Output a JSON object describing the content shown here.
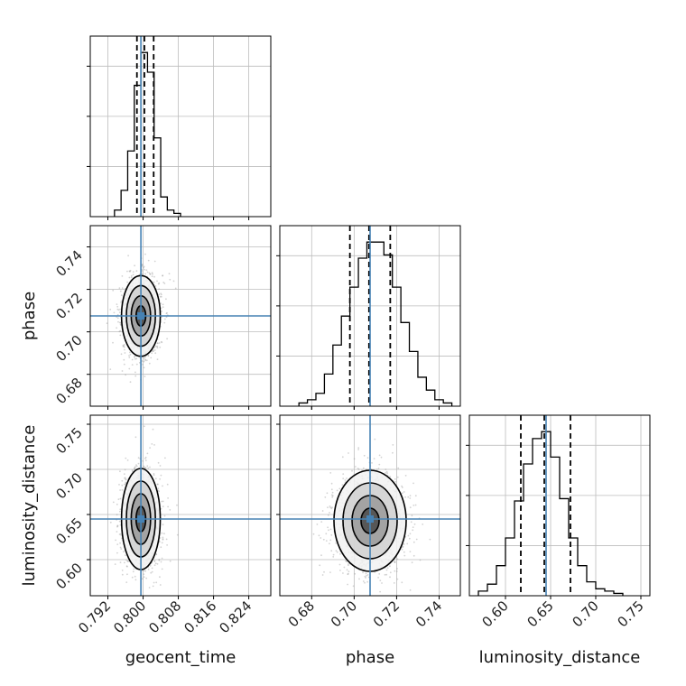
{
  "chart_data": {
    "type": "corner",
    "parameters": [
      "geocent_time",
      "phase",
      "luminosity_distance"
    ],
    "truths": {
      "geocent_time": 0.7995,
      "phase": 0.7075,
      "luminosity_distance": 0.645
    },
    "colors": {
      "truth": "#4682b4",
      "hist": "#000000",
      "grid": "#bdbdbd",
      "scatter": "#9e9e9e"
    },
    "axes": {
      "geocent_time": {
        "range": [
          0.788,
          0.829
        ],
        "ticks": [
          0.792,
          0.8,
          0.808,
          0.816,
          0.824
        ],
        "tick_labels": [
          "0.792",
          "0.800",
          "0.808",
          "0.816",
          "0.824"
        ]
      },
      "phase": {
        "range": [
          0.665,
          0.75
        ],
        "ticks": [
          0.68,
          0.7,
          0.72,
          0.74
        ],
        "tick_labels": [
          "0.68",
          "0.70",
          "0.72",
          "0.74"
        ]
      },
      "luminosity_distance": {
        "range": [
          0.56,
          0.76
        ],
        "ticks": [
          0.6,
          0.65,
          0.7,
          0.75
        ],
        "tick_labels": [
          "0.60",
          "0.65",
          "0.70",
          "0.75"
        ]
      }
    },
    "histograms": [
      {
        "parameter": "geocent_time",
        "bin_edges": [
          0.7935,
          0.795,
          0.7965,
          0.798,
          0.7995,
          0.801,
          0.8025,
          0.804,
          0.8055,
          0.807,
          0.8085
        ],
        "counts": [
          1,
          4,
          10,
          20,
          25,
          22,
          12,
          3,
          1,
          0.5
        ],
        "quantiles": [
          0.7986,
          0.8003,
          0.8024
        ]
      },
      {
        "parameter": "phase",
        "bin_edges": [
          0.674,
          0.678,
          0.682,
          0.686,
          0.69,
          0.694,
          0.698,
          0.702,
          0.706,
          0.71,
          0.714,
          0.718,
          0.722,
          0.726,
          0.73,
          0.734,
          0.738,
          0.742,
          0.746
        ],
        "counts": [
          1,
          2,
          4,
          10,
          19,
          28,
          37,
          46,
          51,
          51,
          47,
          37,
          26,
          17,
          9,
          5,
          2,
          1
        ],
        "quantiles": [
          0.698,
          0.707,
          0.717
        ]
      },
      {
        "parameter": "luminosity_distance",
        "bin_edges": [
          0.57,
          0.58,
          0.59,
          0.6,
          0.61,
          0.62,
          0.63,
          0.64,
          0.65,
          0.66,
          0.67,
          0.68,
          0.69,
          0.7,
          0.71,
          0.72,
          0.73
        ],
        "counts": [
          2,
          5,
          13,
          25,
          41,
          57,
          68,
          71,
          60,
          42,
          25,
          13,
          6,
          3,
          2,
          1
        ],
        "quantiles": [
          0.617,
          0.643,
          0.672
        ]
      }
    ],
    "contours": [
      {
        "x": "geocent_time",
        "y": "phase",
        "center": [
          0.7995,
          0.7075
        ],
        "sigma": [
          0.0022,
          0.0095
        ],
        "levels": [
          0.5,
          1.0,
          1.5,
          2.0
        ]
      },
      {
        "x": "geocent_time",
        "y": "luminosity_distance",
        "center": [
          0.7995,
          0.645
        ],
        "sigma": [
          0.0022,
          0.028
        ],
        "levels": [
          0.5,
          1.0,
          1.5,
          2.0
        ]
      },
      {
        "x": "phase",
        "y": "luminosity_distance",
        "center": [
          0.7075,
          0.643
        ],
        "sigma": [
          0.0085,
          0.028
        ],
        "levels": [
          0.5,
          1.0,
          1.5,
          2.0
        ]
      }
    ]
  }
}
